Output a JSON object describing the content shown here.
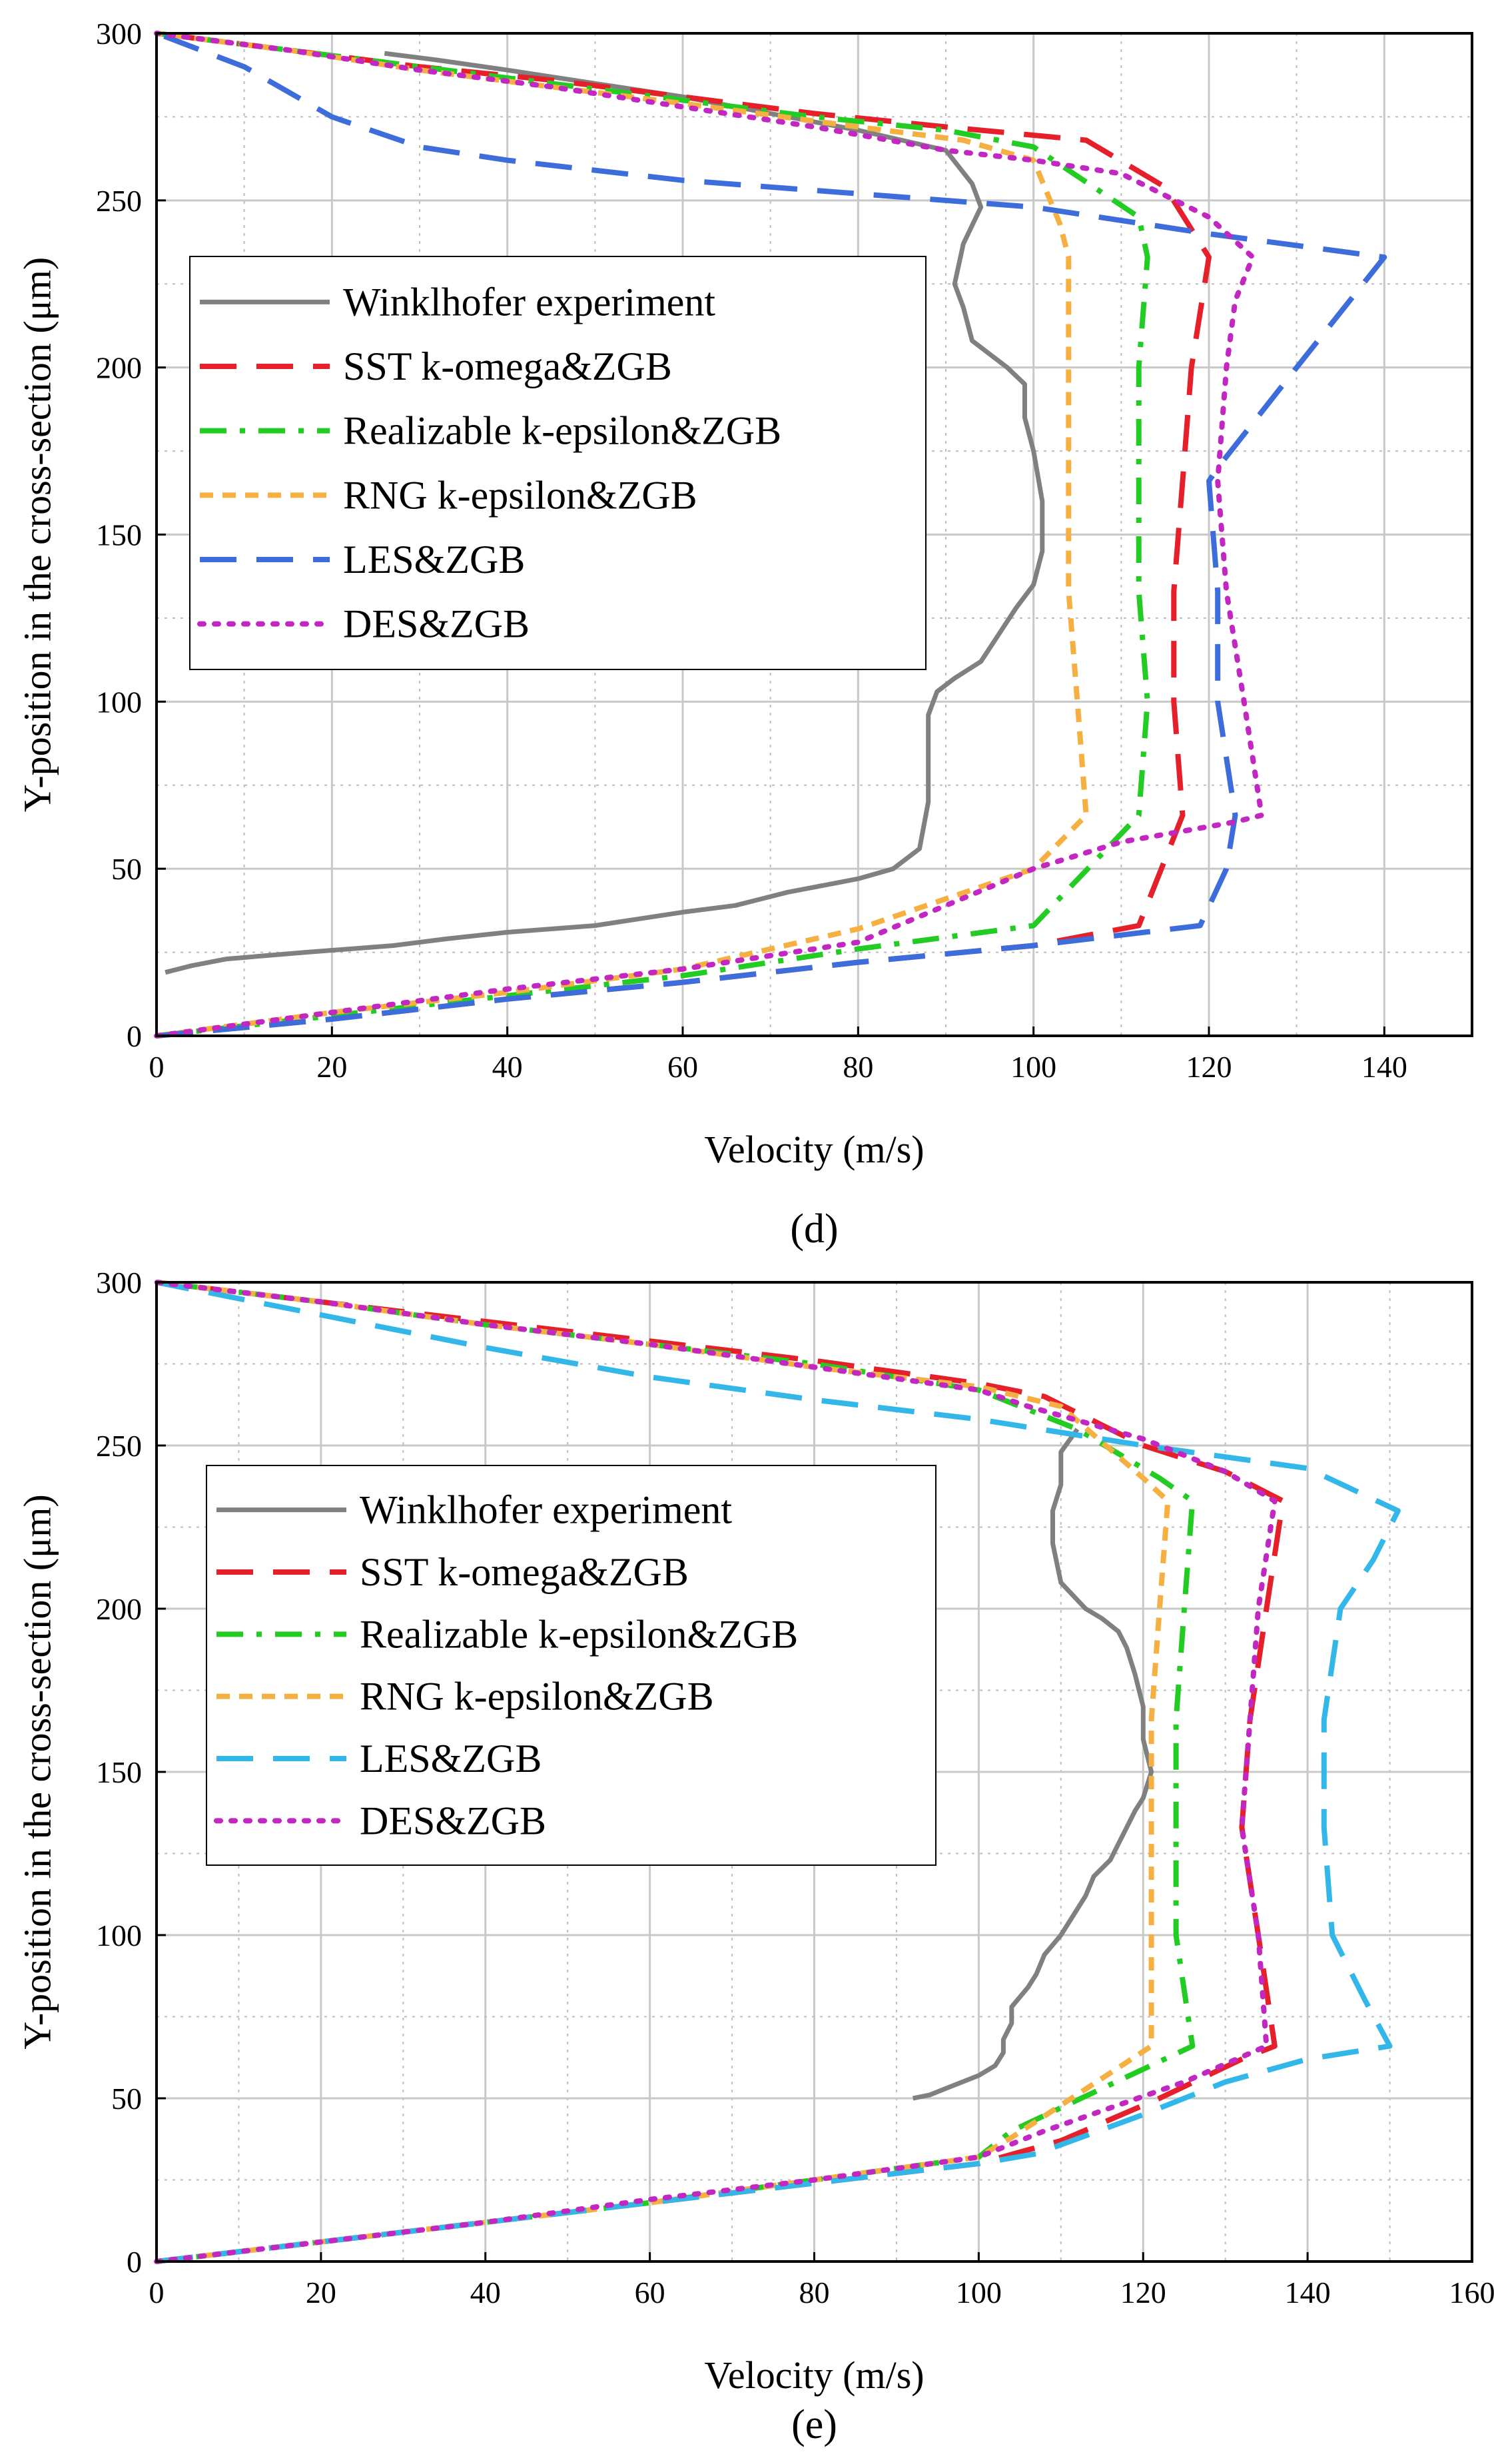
{
  "chart_data": [
    {
      "type": "line",
      "panel_label": "(d)",
      "xlabel": "Velocity (m/s)",
      "ylabel": "Y-position in the cross-section (μm)",
      "xlim": [
        0,
        150
      ],
      "ylim": [
        0,
        300
      ],
      "xticks": [
        0,
        20,
        40,
        60,
        80,
        100,
        120,
        140
      ],
      "yticks": [
        0,
        50,
        100,
        150,
        200,
        250,
        300
      ],
      "grid": true,
      "legend_position": "left-top",
      "series": [
        {
          "name": "Winklhofer experiment",
          "color": "#808080",
          "style": "solid",
          "x": [
            1,
            4,
            8,
            17,
            27,
            33,
            40,
            50,
            60,
            66,
            72,
            80,
            84,
            87,
            88,
            88,
            88,
            89,
            91,
            94,
            96,
            98,
            100,
            101,
            101,
            100,
            99,
            99,
            97,
            93,
            92,
            91,
            92,
            94,
            93,
            90,
            80,
            70,
            60,
            50,
            40,
            32,
            26
          ],
          "y": [
            19,
            21,
            23,
            25,
            27,
            29,
            31,
            33,
            37,
            39,
            43,
            47,
            50,
            56,
            70,
            82,
            96,
            103,
            107,
            112,
            120,
            128,
            135,
            145,
            160,
            175,
            185,
            195,
            200,
            208,
            218,
            225,
            237,
            248,
            255,
            265,
            271,
            276,
            281,
            285,
            289,
            292,
            294
          ]
        },
        {
          "name": "SST k-omega&ZGB",
          "color": "#e5202a",
          "style": "longdash",
          "x": [
            0,
            20,
            40,
            60,
            80,
            100,
            112,
            117,
            116,
            116,
            117,
            118,
            120,
            115,
            106,
            90,
            75,
            60,
            45,
            30,
            15,
            0
          ],
          "y": [
            0,
            5,
            11,
            16,
            22,
            27,
            33,
            66,
            100,
            133,
            166,
            200,
            233,
            254,
            268,
            272,
            276,
            281,
            286,
            290,
            295,
            300
          ]
        },
        {
          "name": "Realizable k-epsilon&ZGB",
          "color": "#22cc22",
          "style": "dashdot",
          "x": [
            0,
            20,
            40,
            60,
            80,
            100,
            112,
            113,
            112,
            112,
            112,
            113,
            112,
            100,
            90,
            75,
            60,
            45,
            30,
            15,
            0
          ],
          "y": [
            0,
            6,
            12,
            18,
            26,
            33,
            66,
            100,
            133,
            166,
            200,
            233,
            245,
            266,
            271,
            275,
            280,
            285,
            290,
            295,
            300
          ]
        },
        {
          "name": "RNG k-epsilon&ZGB",
          "color": "#f5b041",
          "style": "shortdash",
          "x": [
            0,
            20,
            40,
            60,
            80,
            100,
            106,
            105,
            104,
            104,
            104,
            104,
            103,
            100,
            92,
            80,
            60,
            45,
            30,
            15,
            0
          ],
          "y": [
            0,
            7,
            13,
            20,
            32,
            50,
            66,
            100,
            133,
            166,
            200,
            233,
            243,
            262,
            268,
            272,
            279,
            284,
            289,
            295,
            300
          ]
        },
        {
          "name": "LES&ZGB",
          "color": "#3d6ddb",
          "style": "longdash",
          "x": [
            0,
            20,
            40,
            60,
            80,
            100,
            119,
            122,
            123,
            121,
            121,
            120,
            121,
            130,
            140,
            120,
            100,
            80,
            60,
            40,
            30,
            20,
            10,
            0
          ],
          "y": [
            0,
            5,
            11,
            16,
            22,
            27,
            33,
            50,
            66,
            100,
            133,
            166,
            170,
            200,
            233,
            240,
            248,
            252,
            256,
            262,
            266,
            275,
            290,
            300
          ]
        },
        {
          "name": "DES&ZGB",
          "color": "#c227c2",
          "style": "dotted",
          "x": [
            0,
            20,
            40,
            60,
            80,
            100,
            110,
            123,
            126,
            124,
            122,
            121,
            122,
            123,
            125,
            120,
            110,
            100,
            90,
            75,
            60,
            45,
            30,
            15,
            0
          ],
          "y": [
            0,
            7,
            14,
            20,
            28,
            50,
            58,
            64,
            66,
            100,
            133,
            166,
            200,
            220,
            233,
            245,
            258,
            262,
            265,
            272,
            278,
            284,
            289,
            295,
            300
          ]
        }
      ]
    },
    {
      "type": "line",
      "panel_label": "(e)",
      "xlabel": "Velocity (m/s)",
      "ylabel": "Y-position in the cross-section (μm)",
      "xlim": [
        0,
        160
      ],
      "ylim": [
        0,
        300
      ],
      "xticks": [
        0,
        20,
        40,
        60,
        80,
        100,
        120,
        140,
        160
      ],
      "yticks": [
        0,
        50,
        100,
        150,
        200,
        250,
        300
      ],
      "grid": true,
      "legend_position": "left-top",
      "series": [
        {
          "name": "Winklhofer experiment",
          "color": "#808080",
          "style": "solid",
          "x": [
            92,
            94,
            96,
            100,
            102,
            103,
            103,
            104,
            104,
            106,
            107,
            108,
            110,
            112,
            113,
            114,
            116,
            117,
            118,
            119,
            120,
            121,
            120,
            120,
            119,
            118,
            117,
            115,
            113,
            110,
            109,
            109,
            110,
            110,
            112
          ],
          "y": [
            50,
            51,
            53,
            57,
            60,
            64,
            68,
            73,
            78,
            84,
            88,
            94,
            100,
            108,
            112,
            118,
            123,
            128,
            133,
            138,
            142,
            150,
            160,
            170,
            180,
            188,
            193,
            197,
            200,
            208,
            220,
            230,
            238,
            248,
            255
          ]
        },
        {
          "name": "SST k-omega&ZGB",
          "color": "#e5202a",
          "style": "longdash",
          "x": [
            0,
            20,
            40,
            60,
            80,
            100,
            110,
            122,
            132,
            136,
            134,
            132,
            133,
            135,
            137,
            130,
            120,
            108,
            100,
            80,
            60,
            40,
            20,
            0
          ],
          "y": [
            0,
            6,
            12,
            18,
            24,
            30,
            37,
            50,
            62,
            66,
            100,
            133,
            166,
            200,
            233,
            242,
            250,
            265,
            269,
            276,
            282,
            288,
            294,
            300
          ]
        },
        {
          "name": "Realizable k-epsilon&ZGB",
          "color": "#22cc22",
          "style": "dashdot",
          "x": [
            0,
            20,
            40,
            60,
            80,
            100,
            104,
            126,
            124,
            124,
            124,
            125,
            126,
            122,
            112,
            100,
            80,
            60,
            40,
            20,
            0
          ],
          "y": [
            0,
            6,
            12,
            18,
            25,
            32,
            40,
            66,
            100,
            133,
            166,
            200,
            233,
            240,
            255,
            267,
            275,
            281,
            287,
            294,
            300
          ]
        },
        {
          "name": "RNG k-epsilon&ZGB",
          "color": "#f5b041",
          "style": "shortdash",
          "x": [
            0,
            20,
            40,
            60,
            80,
            100,
            104,
            121,
            121,
            121,
            121,
            122,
            123,
            120,
            110,
            100,
            80,
            60,
            40,
            20,
            0
          ],
          "y": [
            0,
            6,
            12,
            18,
            25,
            32,
            38,
            66,
            100,
            133,
            166,
            200,
            233,
            240,
            262,
            268,
            274,
            281,
            287,
            294,
            300
          ]
        },
        {
          "name": "LES&ZGB",
          "color": "#33b6e8",
          "style": "longdash",
          "x": [
            0,
            20,
            40,
            60,
            80,
            100,
            107,
            120,
            130,
            140,
            150,
            147,
            143,
            142,
            142,
            144,
            148,
            151,
            140,
            120,
            100,
            80,
            60,
            40,
            20,
            0
          ],
          "y": [
            0,
            6,
            12,
            18,
            24,
            30,
            33,
            45,
            55,
            62,
            66,
            80,
            100,
            133,
            166,
            200,
            215,
            230,
            243,
            250,
            258,
            264,
            271,
            280,
            290,
            300
          ]
        },
        {
          "name": "DES&ZGB",
          "color": "#c227c2",
          "style": "dotted",
          "x": [
            0,
            20,
            40,
            60,
            80,
            100,
            108,
            125,
            135,
            134,
            132,
            133,
            134,
            136,
            130,
            120,
            106,
            100,
            80,
            60,
            40,
            20,
            0
          ],
          "y": [
            0,
            6,
            12,
            19,
            25,
            32,
            40,
            55,
            66,
            100,
            133,
            166,
            200,
            233,
            242,
            252,
            262,
            267,
            274,
            281,
            287,
            294,
            300
          ]
        }
      ]
    }
  ]
}
